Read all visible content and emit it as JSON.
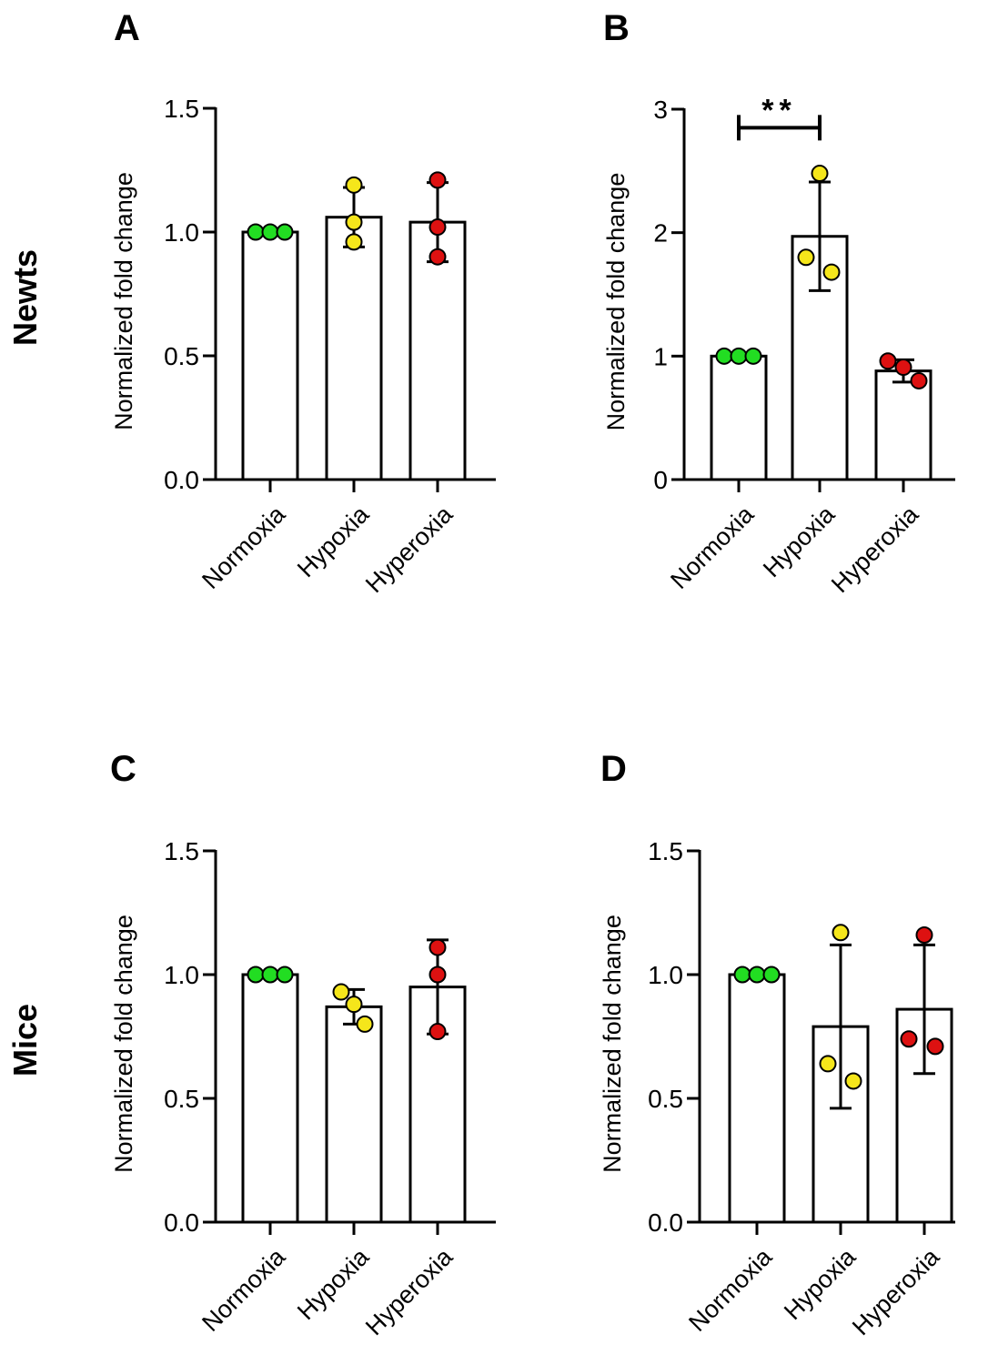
{
  "row_labels": [
    "Newts",
    "Mice"
  ],
  "colors": {
    "Normoxia": "#22dd22",
    "Hypoxia": "#f5e61b",
    "Hyperoxia": "#dd1111",
    "bar": "#ffffff",
    "stroke": "#000000"
  },
  "chart_data": [
    {
      "panel": "A",
      "type": "bar",
      "categories": [
        "Normoxia",
        "Hypoxia",
        "Hyperoxia"
      ],
      "ylabel": "Normalized fold change",
      "xlabel": "",
      "ylim": [
        0,
        1.5
      ],
      "yticks": [
        "0.0",
        "0.5",
        "1.0",
        "1.5"
      ],
      "ytick_values": [
        0,
        0.5,
        1.0,
        1.5
      ],
      "values": [
        1.0,
        1.06,
        1.04
      ],
      "errors": [
        0.0,
        0.12,
        0.16
      ],
      "points": [
        [
          1.0,
          1.0,
          1.0
        ],
        [
          1.19,
          1.04,
          0.96
        ],
        [
          1.21,
          1.02,
          0.9
        ]
      ],
      "significance": null
    },
    {
      "panel": "B",
      "type": "bar",
      "categories": [
        "Normoxia",
        "Hypoxia",
        "Hyperoxia"
      ],
      "ylabel": "Normalized fold change",
      "xlabel": "",
      "ylim": [
        0,
        3
      ],
      "yticks": [
        "0",
        "1",
        "2",
        "3"
      ],
      "ytick_values": [
        0,
        1,
        2,
        3
      ],
      "values": [
        1.0,
        1.97,
        0.88
      ],
      "errors": [
        0.0,
        0.44,
        0.09
      ],
      "points": [
        [
          1.0,
          1.0,
          1.0
        ],
        [
          2.48,
          1.8,
          1.68
        ],
        [
          0.96,
          0.91,
          0.8
        ]
      ],
      "significance": {
        "label": "**",
        "from": 0,
        "to": 1,
        "y": 2.85
      }
    },
    {
      "panel": "C",
      "type": "bar",
      "categories": [
        "Normoxia",
        "Hypoxia",
        "Hyperoxia"
      ],
      "ylabel": "Normalized fold change",
      "xlabel": "",
      "ylim": [
        0,
        1.5
      ],
      "yticks": [
        "0.0",
        "0.5",
        "1.0",
        "1.5"
      ],
      "ytick_values": [
        0,
        0.5,
        1.0,
        1.5
      ],
      "values": [
        1.0,
        0.87,
        0.95
      ],
      "errors": [
        0.0,
        0.07,
        0.19
      ],
      "points": [
        [
          1.0,
          1.0,
          1.0
        ],
        [
          0.93,
          0.88,
          0.8
        ],
        [
          1.11,
          1.0,
          0.77
        ]
      ],
      "significance": null
    },
    {
      "panel": "D",
      "type": "bar",
      "categories": [
        "Normoxia",
        "Hypoxia",
        "Hyperoxia"
      ],
      "ylabel": "Normalized fold change",
      "xlabel": "",
      "ylim": [
        0,
        1.5
      ],
      "yticks": [
        "0.0",
        "0.5",
        "1.0",
        "1.5"
      ],
      "ytick_values": [
        0,
        0.5,
        1.0,
        1.5
      ],
      "values": [
        1.0,
        0.79,
        0.86
      ],
      "errors": [
        0.0,
        0.33,
        0.26
      ],
      "points": [
        [
          1.0,
          1.0,
          1.0
        ],
        [
          1.17,
          0.64,
          0.57
        ],
        [
          1.16,
          0.74,
          0.71
        ]
      ],
      "significance": null
    }
  ]
}
